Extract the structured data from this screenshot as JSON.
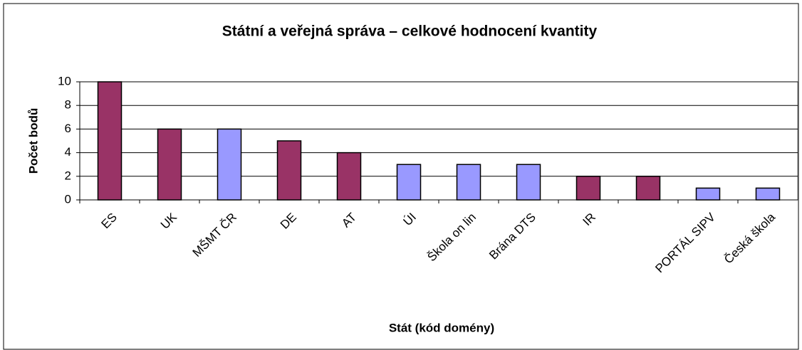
{
  "chart_data": {
    "type": "bar",
    "title": "Státní a veřejná správa – celkové hodnocení kvantity",
    "x_label": "Stát (kód domény)",
    "y_label": "Počet bodů",
    "categories": [
      "ES",
      "UK",
      "MŠMT ČR",
      "DE",
      "AT",
      "ÚI",
      "Škola on lin",
      "Brána DTS",
      "IR",
      "",
      "PORTÁL SIPV",
      "Česká škola"
    ],
    "values": [
      10,
      6,
      6,
      5,
      4,
      3,
      3,
      3,
      2,
      2,
      1,
      1
    ],
    "colors": [
      "#993366",
      "#993366",
      "#9999ff",
      "#993366",
      "#993366",
      "#9999ff",
      "#9999ff",
      "#9999ff",
      "#993366",
      "#993366",
      "#9999ff",
      "#9999ff"
    ],
    "ylim": [
      0,
      10
    ],
    "yticks": [
      0,
      2,
      4,
      6,
      8,
      10
    ],
    "grid": true
  }
}
